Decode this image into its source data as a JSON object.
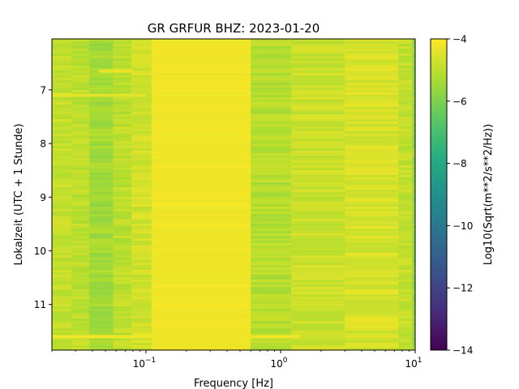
{
  "chart_data": {
    "type": "heatmap",
    "title": "GR GRFUR  BHZ: 2023-01-20",
    "xlabel": "Frequency [Hz]",
    "ylabel": "Lokalzeit (UTC + 1 Stunde)",
    "x_scale": "log",
    "xlim": [
      0.02,
      10
    ],
    "ylim": [
      11.85,
      6.05
    ],
    "x_ticks": [
      {
        "value": 0.1,
        "base": "10",
        "exp": "−1"
      },
      {
        "value": 1,
        "base": "10",
        "exp": "0"
      },
      {
        "value": 10,
        "base": "10",
        "exp": "1"
      }
    ],
    "y_ticks": [
      {
        "value": 7,
        "label": "7"
      },
      {
        "value": 8,
        "label": "8"
      },
      {
        "value": 9,
        "label": "9"
      },
      {
        "value": 10,
        "label": "10"
      },
      {
        "value": 11,
        "label": "11"
      }
    ],
    "colorbar": {
      "label": "Log10(Sqrt(m**2/s**2/Hz))",
      "colormap": "viridis",
      "range": [
        -14,
        -4
      ],
      "ticks": [
        {
          "value": -4,
          "label": "−4"
        },
        {
          "value": -6,
          "label": "−6"
        },
        {
          "value": -8,
          "label": "−8"
        },
        {
          "value": -10,
          "label": "−10"
        },
        {
          "value": -12,
          "label": "−12"
        },
        {
          "value": -14,
          "label": "−14"
        }
      ]
    },
    "bands": [
      {
        "f_min": 0.02,
        "f_max": 0.028,
        "value": -4.9
      },
      {
        "f_min": 0.028,
        "f_max": 0.038,
        "value": -5.0
      },
      {
        "f_min": 0.038,
        "f_max": 0.057,
        "value": -5.4
      },
      {
        "f_min": 0.057,
        "f_max": 0.078,
        "value": -5.0
      },
      {
        "f_min": 0.078,
        "f_max": 0.11,
        "value": -4.7
      },
      {
        "f_min": 0.11,
        "f_max": 0.6,
        "value": -4.2
      },
      {
        "f_min": 0.6,
        "f_max": 1.2,
        "value": -5.1
      },
      {
        "f_min": 1.2,
        "f_max": 3.0,
        "value": -4.8
      },
      {
        "f_min": 3.0,
        "f_max": 7.5,
        "value": -4.6
      },
      {
        "f_min": 7.5,
        "f_max": 9.5,
        "value": -4.9
      },
      {
        "f_min": 9.5,
        "f_max": 10,
        "value": -5.6
      }
    ],
    "bright_bands": [
      {
        "time": 6.65,
        "f_min": 0.045,
        "f_max": 0.08,
        "value": -4.3
      },
      {
        "time": 7.1,
        "f_min": 0.02,
        "f_max": 0.1,
        "value": -4.4
      },
      {
        "time": 11.6,
        "f_min": 0.02,
        "f_max": 1.4,
        "value": -4.2
      }
    ]
  }
}
